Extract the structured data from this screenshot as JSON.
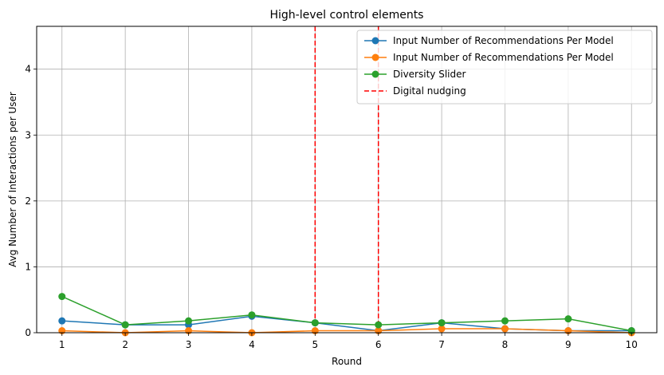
{
  "chart_data": {
    "type": "line",
    "title": "High-level control elements",
    "xlabel": "Round",
    "ylabel": "Avg Number of Interactions per User",
    "x": [
      1,
      2,
      3,
      4,
      5,
      6,
      7,
      8,
      9,
      10
    ],
    "xticks": [
      "1",
      "2",
      "3",
      "4",
      "5",
      "6",
      "7",
      "8",
      "9",
      "10"
    ],
    "yticks": [
      "0",
      "1",
      "2",
      "3",
      "4"
    ],
    "xlim": [
      0.6,
      10.4
    ],
    "ylim": [
      0,
      4.65
    ],
    "grid": true,
    "legend_position": "top-right",
    "series": [
      {
        "name": "Input Number of Recommendations Per Model",
        "color": "#1f77b4",
        "marker": "circle",
        "style": "solid",
        "values": [
          0.18,
          0.12,
          0.12,
          0.25,
          0.15,
          0.03,
          0.15,
          0.06,
          0.03,
          0.03
        ]
      },
      {
        "name": "Input Number of Recommendations Per Model",
        "color": "#ff7f0e",
        "marker": "circle",
        "style": "solid",
        "values": [
          0.03,
          0.0,
          0.03,
          0.0,
          0.03,
          0.03,
          0.06,
          0.06,
          0.03,
          0.0
        ]
      },
      {
        "name": "Diversity Slider",
        "color": "#2ca02c",
        "marker": "circle",
        "style": "solid",
        "values": [
          0.55,
          0.12,
          0.18,
          0.27,
          0.15,
          0.12,
          0.15,
          0.18,
          0.21,
          0.03
        ]
      }
    ],
    "vlines": [
      {
        "name": "Digital nudging",
        "color": "#ff0000",
        "style": "dashed",
        "x": [
          5,
          6
        ]
      }
    ]
  }
}
